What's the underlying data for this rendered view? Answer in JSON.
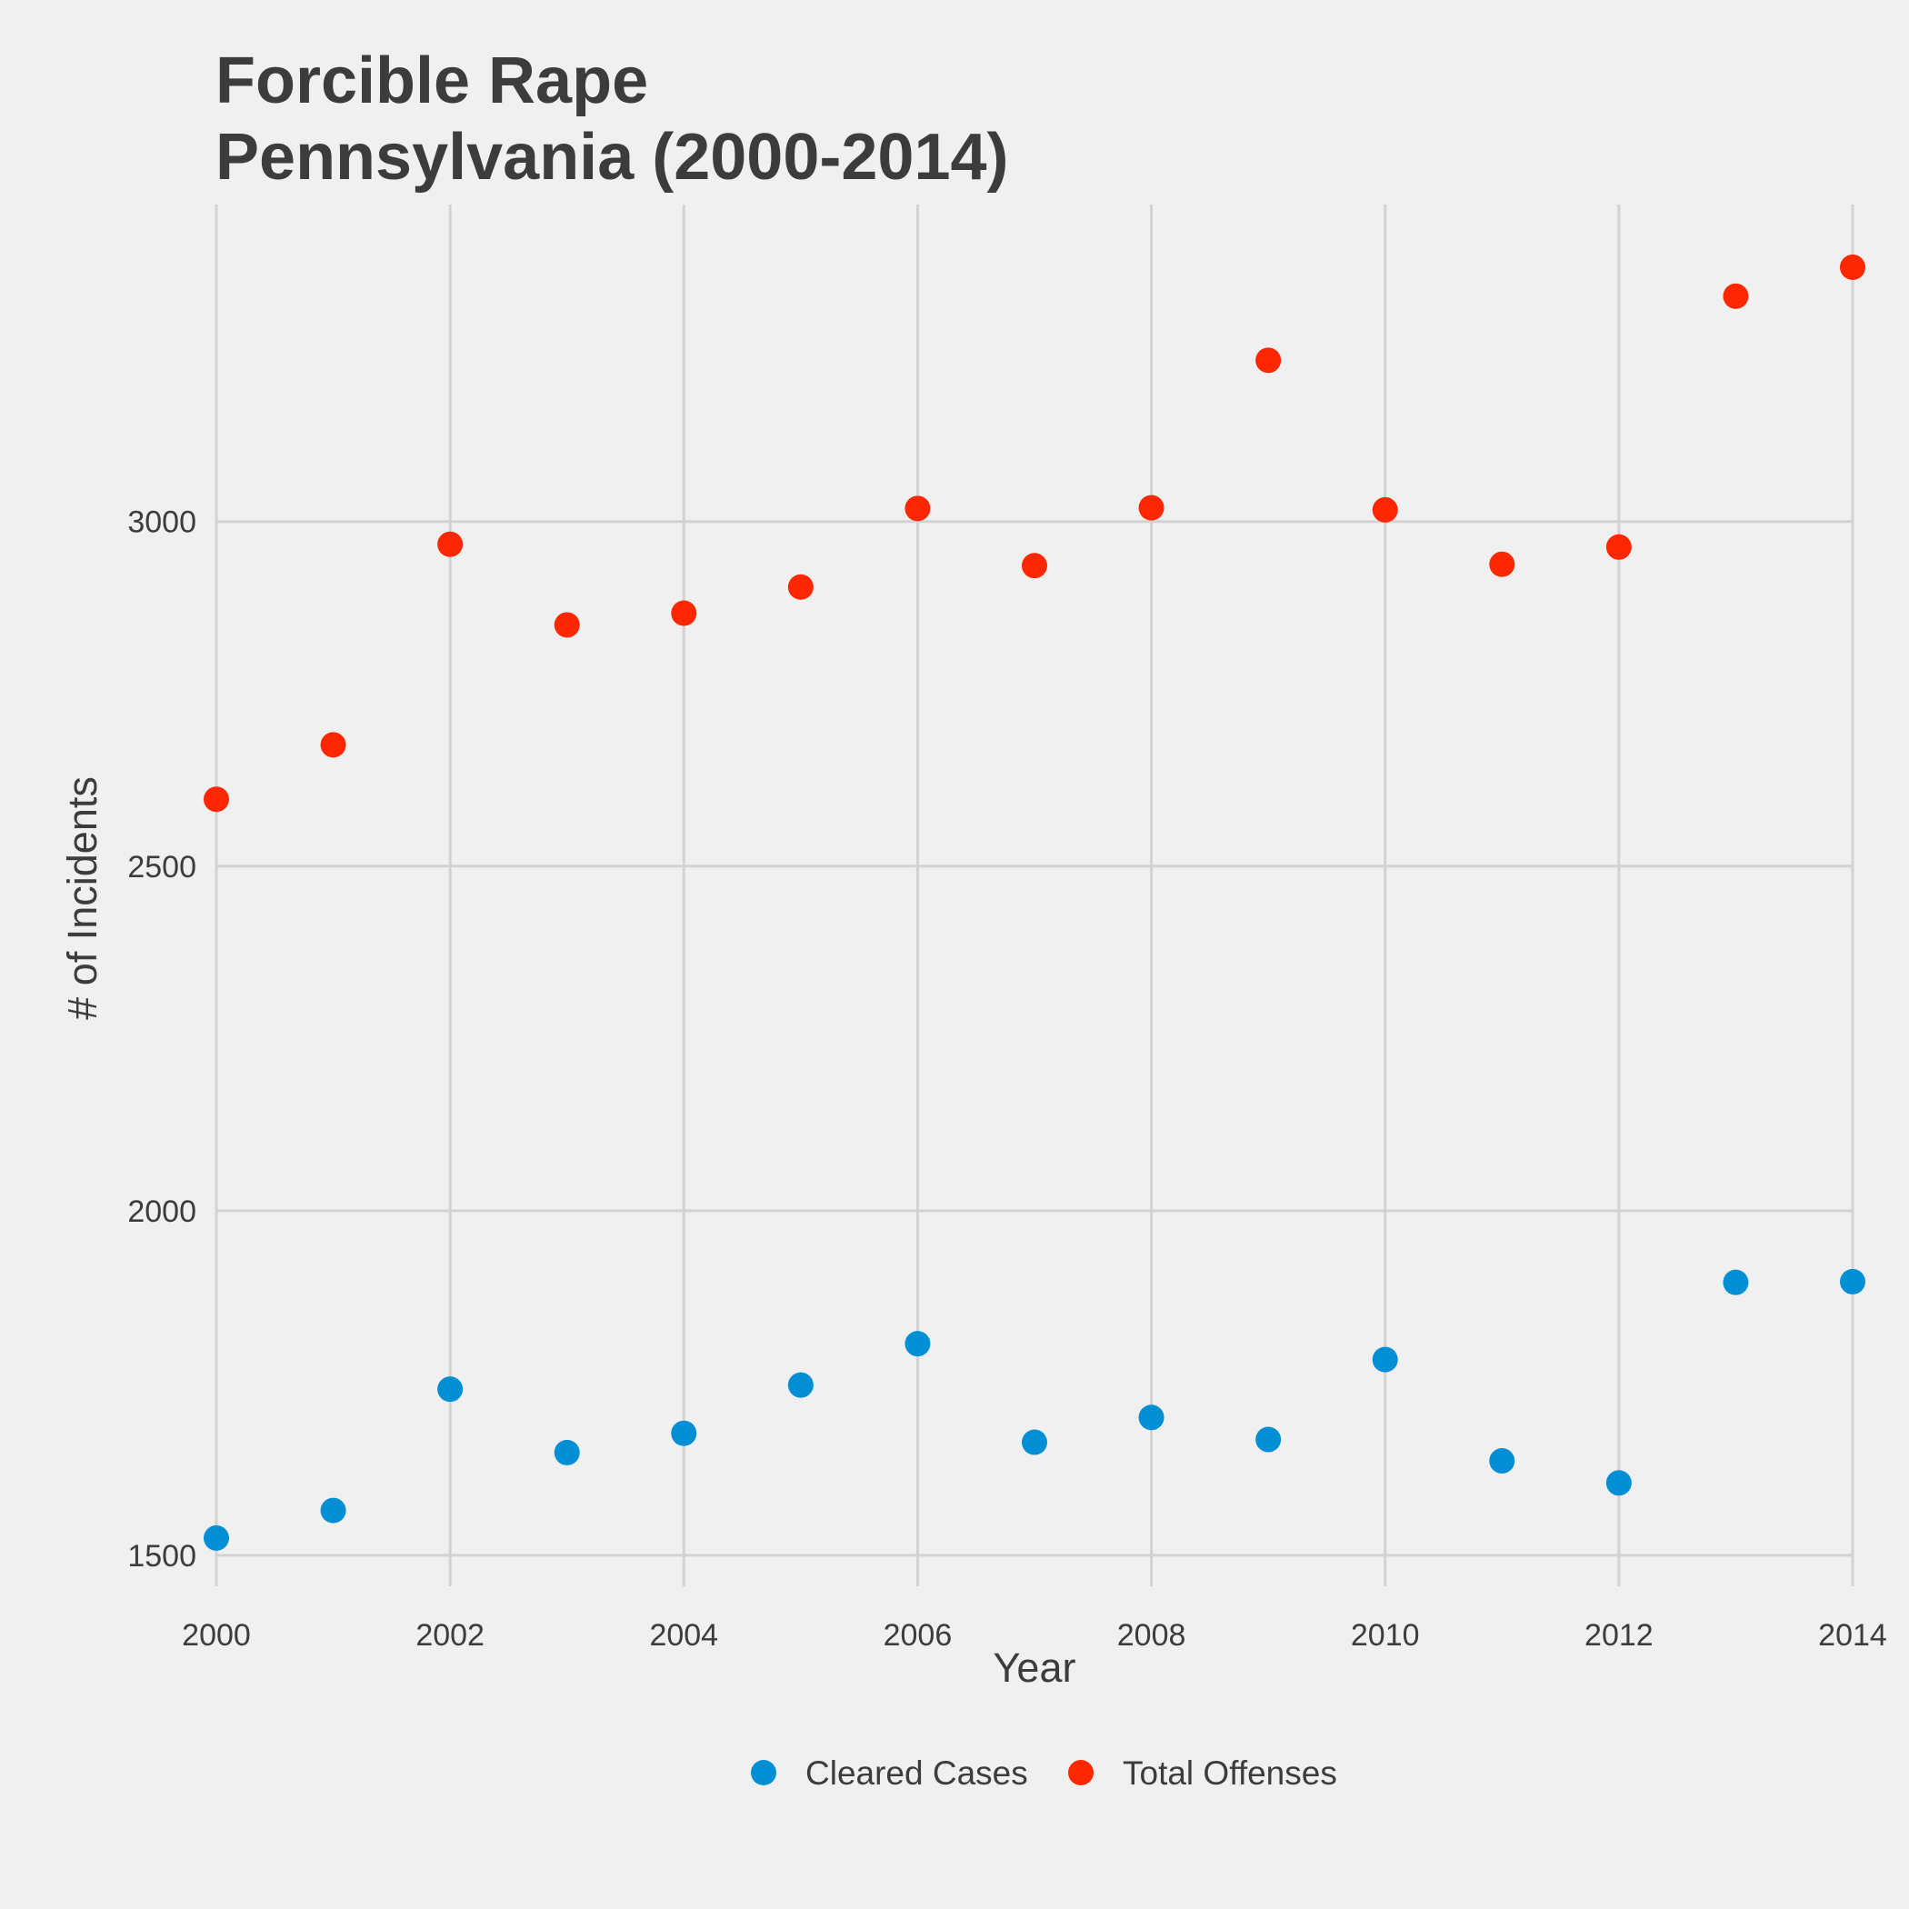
{
  "chart_data": {
    "type": "scatter",
    "title": "Forcible Rape",
    "subtitle": "Pennsylvania (2000-2014)",
    "xlabel": "Year",
    "ylabel": "# of Incidents",
    "xlim": [
      2000,
      2014
    ],
    "ylim": [
      1455,
      3460
    ],
    "x_ticks": [
      2000,
      2002,
      2004,
      2006,
      2008,
      2010,
      2012,
      2014
    ],
    "y_ticks": [
      1500,
      2000,
      2500,
      3000
    ],
    "grid": true,
    "legend_position": "bottom",
    "x": [
      2000,
      2001,
      2002,
      2003,
      2004,
      2005,
      2006,
      2007,
      2008,
      2009,
      2010,
      2011,
      2012,
      2013,
      2014
    ],
    "series": [
      {
        "name": "Cleared Cases",
        "color": "#008fd5",
        "values": [
          1525,
          1565,
          1741,
          1649,
          1677,
          1747,
          1807,
          1664,
          1700,
          1668,
          1784,
          1637,
          1605,
          1896,
          1897
        ]
      },
      {
        "name": "Total Offenses",
        "color": "#ff2700",
        "values": [
          2597,
          2676,
          2967,
          2850,
          2867,
          2905,
          3019,
          2936,
          3020,
          3234,
          3017,
          2938,
          2963,
          3327,
          3369
        ]
      }
    ]
  }
}
